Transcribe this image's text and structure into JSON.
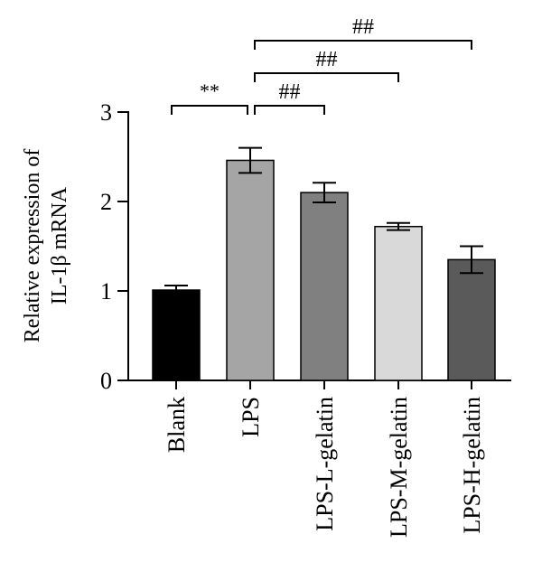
{
  "chart_data": {
    "type": "bar",
    "ylabel_lines": [
      "Relative expression of",
      "IL-1β mRNA"
    ],
    "xlabel": "",
    "ylim": [
      0,
      3
    ],
    "yticks": [
      "0",
      "1",
      "2",
      "3"
    ],
    "categories": [
      "Blank",
      "LPS",
      "LPS-L-gelatin",
      "LPS-M-gelatin",
      "LPS-H-gelatin"
    ],
    "values": [
      1.01,
      2.46,
      2.1,
      1.72,
      1.35
    ],
    "errors": [
      0.05,
      0.14,
      0.11,
      0.04,
      0.15
    ],
    "bar_colors": [
      "#000000",
      "#a5a5a5",
      "#808080",
      "#d9d9d9",
      "#5a5a5a"
    ],
    "significance": [
      {
        "from": 0,
        "to": 1,
        "label": "**"
      },
      {
        "from": 1,
        "to": 2,
        "label": "##"
      },
      {
        "from": 1,
        "to": 3,
        "label": "##"
      },
      {
        "from": 1,
        "to": 4,
        "label": "##"
      }
    ]
  }
}
